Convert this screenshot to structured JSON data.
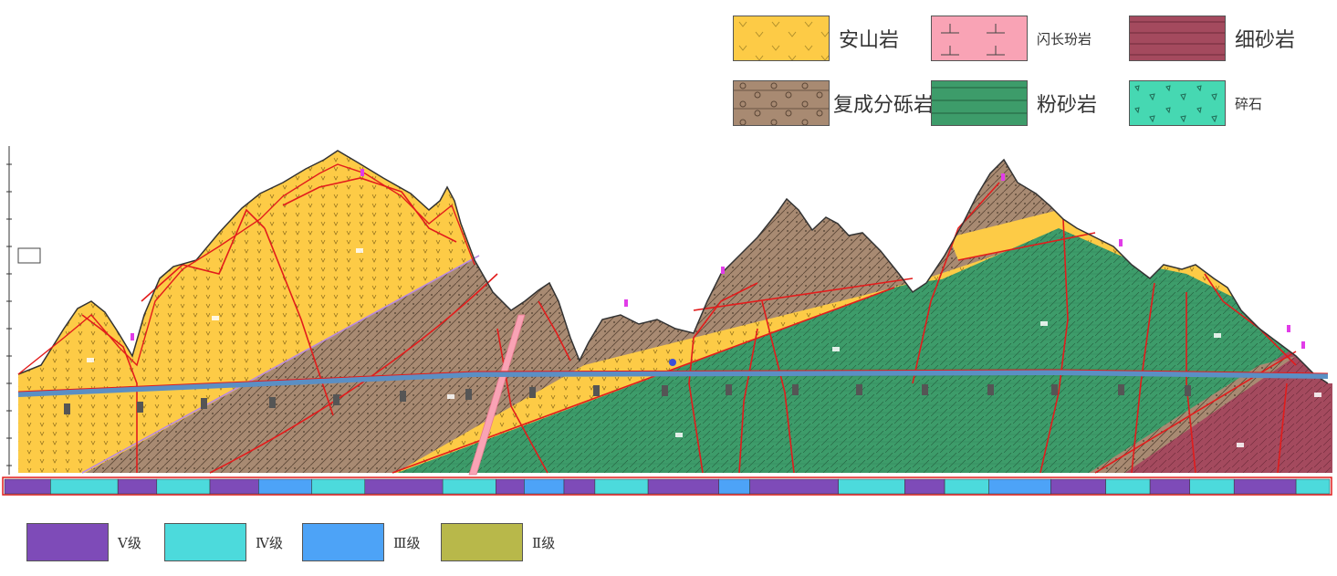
{
  "lithology_legend": [
    {
      "name": "安山岩",
      "color": "#FDCB46",
      "pattern": "v-marks"
    },
    {
      "name": "闪长玢岩",
      "color": "#F9A3B5",
      "pattern": "inverted-t"
    },
    {
      "name": "细砂岩",
      "color": "#A44A5E",
      "pattern": "fine-lines"
    },
    {
      "name": "复成分砾岩",
      "color": "#A88A72",
      "pattern": "circles"
    },
    {
      "name": "粉砂岩",
      "color": "#3D9C6A",
      "pattern": "horizontal-lines"
    },
    {
      "name": "碎石",
      "color": "#46D8B2",
      "pattern": "fragments"
    }
  ],
  "grade_legend": [
    {
      "name": "Ⅴ级",
      "color": "#7E4BB8"
    },
    {
      "name": "Ⅳ级",
      "color": "#4CDADC"
    },
    {
      "name": "Ⅲ级",
      "color": "#4DA3F7"
    },
    {
      "name": "Ⅱ级",
      "color": "#B8B84A"
    }
  ],
  "grade_bar": [
    {
      "grade": 5,
      "len": 52
    },
    {
      "grade": 4,
      "len": 76
    },
    {
      "grade": 5,
      "len": 44
    },
    {
      "grade": 4,
      "len": 60
    },
    {
      "grade": 5,
      "len": 55
    },
    {
      "grade": 3,
      "len": 60
    },
    {
      "grade": 4,
      "len": 60
    },
    {
      "grade": 5,
      "len": 88
    },
    {
      "grade": 4,
      "len": 60
    },
    {
      "grade": 5,
      "len": 32
    },
    {
      "grade": 3,
      "len": 45
    },
    {
      "grade": 5,
      "len": 35
    },
    {
      "grade": 4,
      "len": 60
    },
    {
      "grade": 5,
      "len": 80
    },
    {
      "grade": 3,
      "len": 35
    },
    {
      "grade": 5,
      "len": 100
    },
    {
      "grade": 4,
      "len": 75
    },
    {
      "grade": 5,
      "len": 45
    },
    {
      "grade": 4,
      "len": 50
    },
    {
      "grade": 3,
      "len": 70
    },
    {
      "grade": 5,
      "len": 62
    },
    {
      "grade": 4,
      "len": 50
    },
    {
      "grade": 5,
      "len": 45
    },
    {
      "grade": 4,
      "len": 50
    },
    {
      "grade": 5,
      "len": 70
    },
    {
      "grade": 4,
      "len": 38
    }
  ]
}
